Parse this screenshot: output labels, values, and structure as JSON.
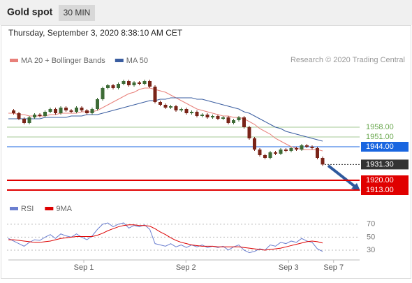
{
  "header": {
    "title": "Gold spot",
    "timeframe": "30 MIN"
  },
  "chart_data": [
    {
      "type": "candlestick",
      "subtitle": "Thursday, September 3, 2020 8:38:10 AM CET",
      "credit": "Research © 2020 Trading Central",
      "x": [
        0,
        1,
        2,
        3,
        4,
        5,
        6,
        7,
        8,
        9,
        10,
        11,
        12,
        13,
        14,
        15,
        16,
        17,
        18,
        19,
        20,
        21,
        22,
        23,
        24,
        25,
        26,
        27,
        28,
        29,
        30,
        31,
        32,
        33,
        34,
        35,
        36,
        37,
        38,
        39,
        40,
        41,
        42,
        43,
        44,
        45,
        46,
        47,
        48,
        49,
        50,
        51,
        52,
        53,
        54,
        55,
        56,
        57,
        58,
        59,
        60
      ],
      "xlim": [
        -0.27,
        67.07
      ],
      "xticks": [
        {
          "value": 14.4,
          "label": "Sep 1"
        },
        {
          "value": 33.9,
          "label": "Sep 2"
        },
        {
          "value": 53.5,
          "label": "Sep 3"
        },
        {
          "value": 62.1,
          "label": "Sep 7"
        }
      ],
      "ylim": [
        1906.5,
        2011.5
      ],
      "up_color": "#3d6b36",
      "down_color": "#7a2418",
      "series": [
        {
          "name": "Price",
          "values": [
            1970,
            1968,
            1964,
            1961,
            1965,
            1967,
            1966,
            1969,
            1971,
            1968,
            1972,
            1970,
            1969,
            1972,
            1970,
            1968,
            1971,
            1978,
            1986,
            1988,
            1986,
            1989,
            1991,
            1988,
            1990,
            1989,
            1991,
            1987,
            1976,
            1974,
            1972,
            1973,
            1970,
            1971,
            1968,
            1969,
            1966,
            1967,
            1965,
            1966,
            1964,
            1965,
            1961,
            1963,
            1965,
            1958,
            1950,
            1942,
            1938,
            1936,
            1940,
            1939,
            1942,
            1941,
            1943,
            1942,
            1945,
            1944,
            1943,
            1936,
            1931.3
          ]
        },
        {
          "name": "MA 20 + Bollinger Bands",
          "color": "#e8807a",
          "values": [
            1968,
            1968,
            1967,
            1967,
            1966,
            1966,
            1966,
            1966,
            1967,
            1967,
            1968,
            1968,
            1968,
            1968,
            1969,
            1969,
            1969,
            1970,
            1972,
            1974,
            1976,
            1978,
            1980,
            1982,
            1983,
            1985,
            1986,
            1986,
            1985,
            1984,
            1983,
            1981,
            1979,
            1977,
            1975,
            1973,
            1971,
            1970,
            1969,
            1968,
            1967,
            1966,
            1966,
            1965,
            1965,
            1964,
            1962,
            1960,
            1957,
            1955,
            1953,
            1950,
            1948,
            1946,
            1944,
            1943,
            1942,
            1942,
            1942,
            1942,
            1941
          ]
        },
        {
          "name": "MA 50",
          "color": "#3a5da0",
          "values": [
            1964,
            1964,
            1964,
            1964,
            1964,
            1964,
            1964,
            1965,
            1965,
            1965,
            1965,
            1965,
            1966,
            1966,
            1966,
            1967,
            1967,
            1967,
            1968,
            1969,
            1970,
            1971,
            1972,
            1973,
            1974,
            1975,
            1976,
            1977,
            1977,
            1978,
            1978,
            1979,
            1979,
            1979,
            1979,
            1979,
            1978,
            1978,
            1977,
            1976,
            1975,
            1974,
            1973,
            1972,
            1971,
            1969,
            1968,
            1966,
            1964,
            1962,
            1960,
            1958,
            1957,
            1955,
            1954,
            1953,
            1952,
            1951,
            1950,
            1949,
            1948
          ]
        }
      ],
      "levels": [
        {
          "value": 1958,
          "label": "1958.00",
          "color": "#6aa84f",
          "boxed": false
        },
        {
          "value": 1951,
          "label": "1951.00",
          "color": "#6aa84f",
          "boxed": false
        },
        {
          "value": 1944,
          "label": "1944.00",
          "color": "#1a66e0",
          "boxed": true
        },
        {
          "value": 1931.3,
          "label": "1931.30",
          "color": "#333333",
          "boxed": true
        },
        {
          "value": 1920,
          "label": "1920.00",
          "color": "#e00000",
          "boxed": true
        },
        {
          "value": 1913,
          "label": "1913.00",
          "color": "#e00000",
          "boxed": true
        }
      ]
    },
    {
      "type": "line",
      "x": [
        0,
        1,
        2,
        3,
        4,
        5,
        6,
        7,
        8,
        9,
        10,
        11,
        12,
        13,
        14,
        15,
        16,
        17,
        18,
        19,
        20,
        21,
        22,
        23,
        24,
        25,
        26,
        27,
        28,
        29,
        30,
        31,
        32,
        33,
        34,
        35,
        36,
        37,
        38,
        39,
        40,
        41,
        42,
        43,
        44,
        45,
        46,
        47,
        48,
        49,
        50,
        51,
        52,
        53,
        54,
        55,
        56,
        57,
        58,
        59,
        60
      ],
      "xlim": [
        -0.27,
        67.07
      ],
      "ylim": [
        17,
        86
      ],
      "yticks": [
        70,
        50,
        30
      ],
      "series": [
        {
          "name": "RSI",
          "color": "#6b7fd0",
          "values": [
            48,
            44,
            40,
            36,
            42,
            46,
            45,
            50,
            54,
            48,
            55,
            52,
            50,
            55,
            50,
            46,
            52,
            62,
            70,
            72,
            66,
            70,
            72,
            64,
            68,
            66,
            69,
            62,
            40,
            38,
            36,
            40,
            35,
            38,
            34,
            38,
            35,
            38,
            34,
            36,
            34,
            36,
            30,
            35,
            38,
            30,
            26,
            28,
            32,
            30,
            38,
            36,
            42,
            40,
            44,
            42,
            48,
            44,
            42,
            32,
            28
          ]
        },
        {
          "name": "9MA",
          "color": "#dd0000",
          "values": [
            46,
            46,
            45,
            44,
            43,
            42,
            42,
            43,
            44,
            46,
            48,
            49,
            50,
            51,
            51,
            51,
            51,
            53,
            56,
            60,
            63,
            66,
            68,
            69,
            69,
            68,
            68,
            67,
            63,
            58,
            54,
            49,
            45,
            42,
            40,
            38,
            37,
            36,
            36,
            36,
            35,
            35,
            35,
            35,
            35,
            34,
            33,
            32,
            31,
            30,
            31,
            32,
            33,
            35,
            37,
            39,
            41,
            43,
            44,
            43,
            41
          ]
        }
      ]
    }
  ]
}
